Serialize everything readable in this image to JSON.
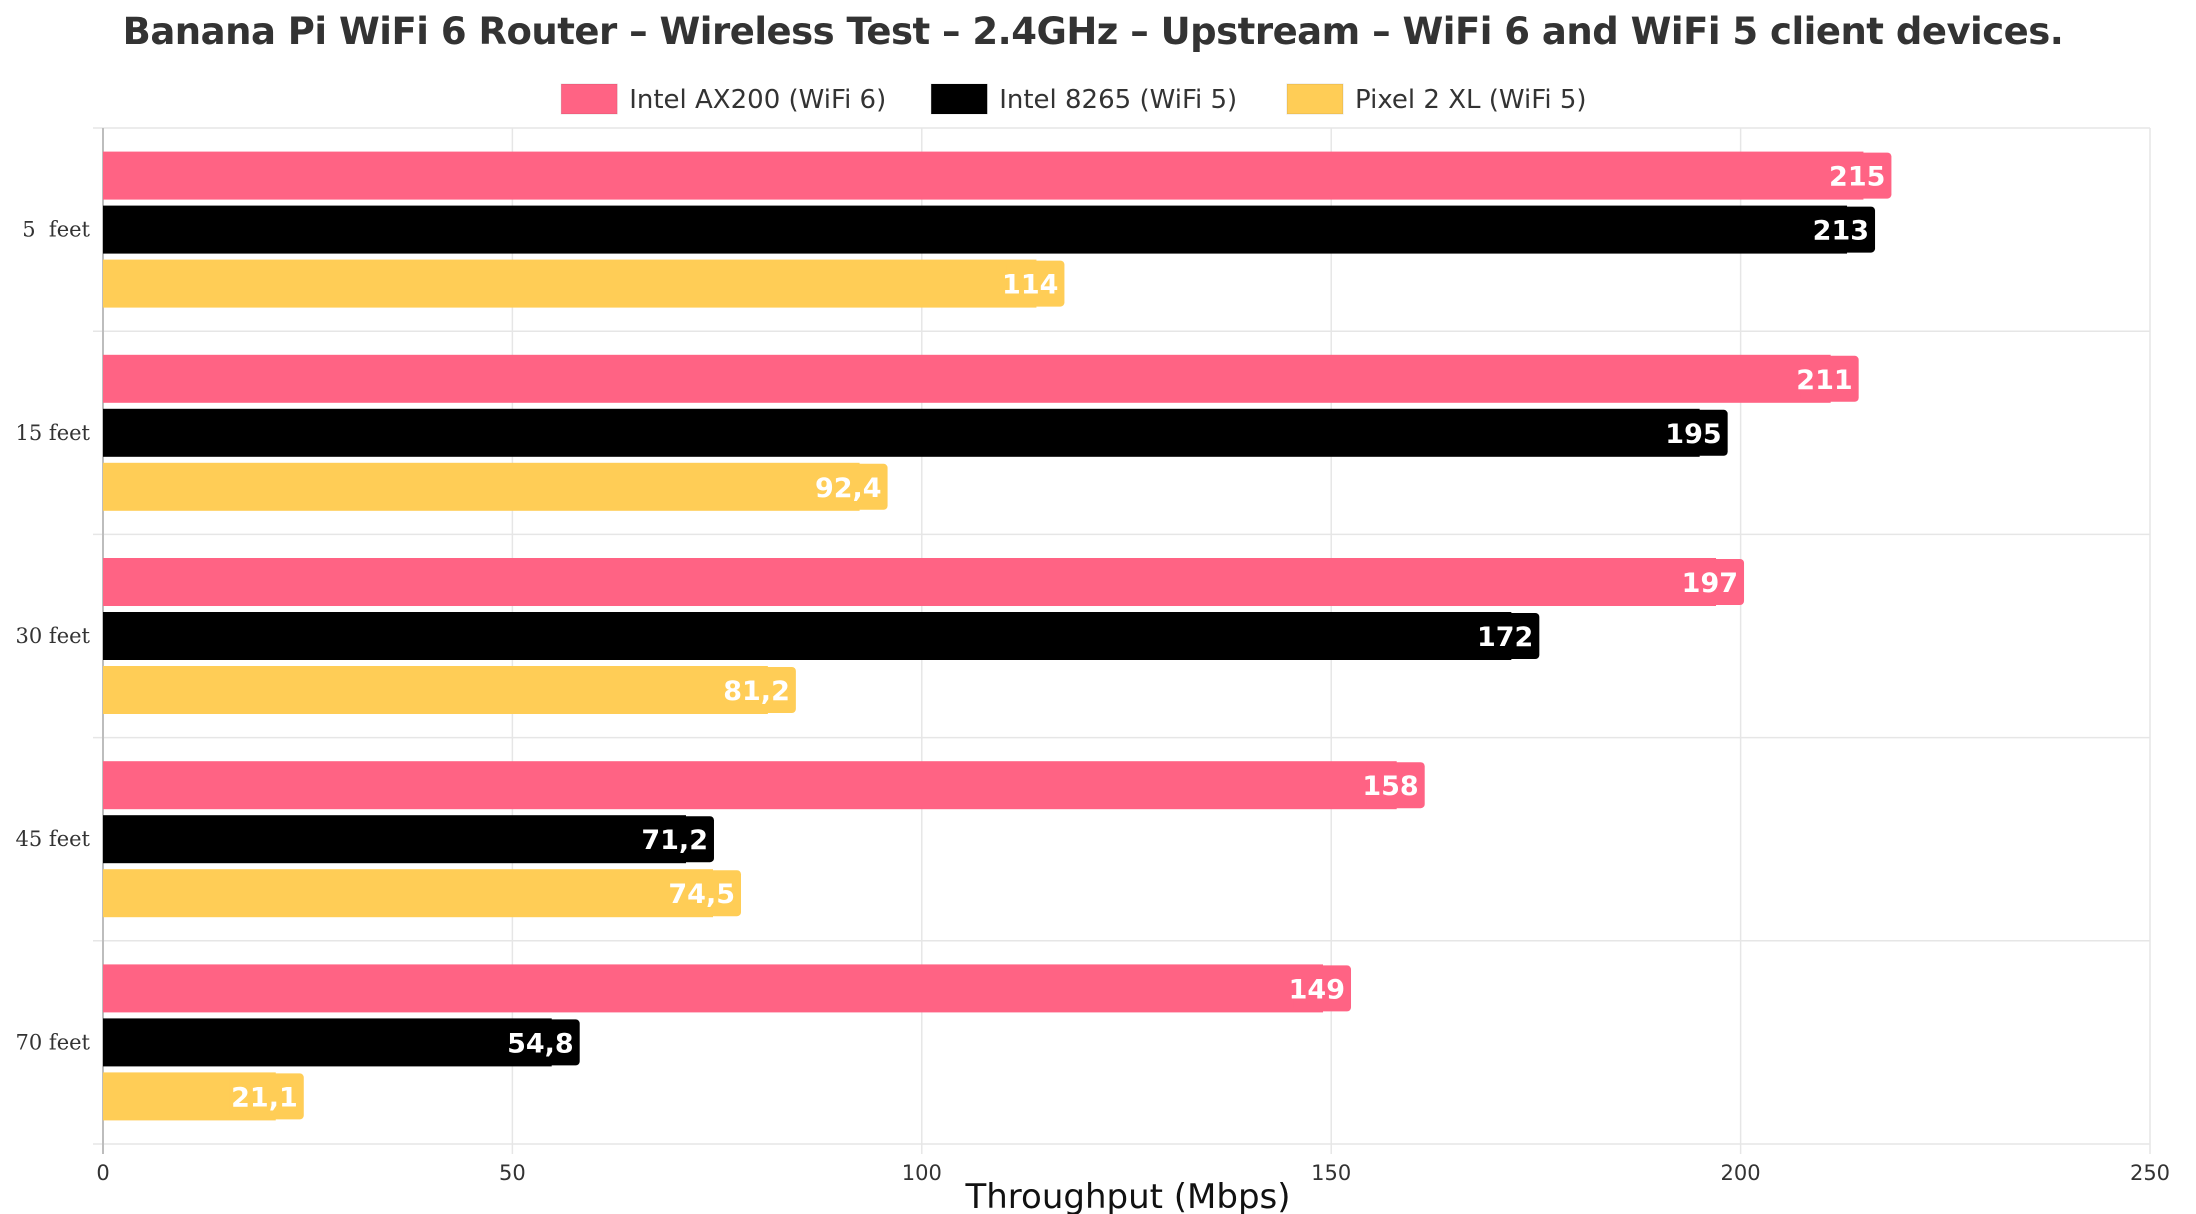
{
  "chart_data": {
    "type": "bar",
    "orientation": "horizontal",
    "title": "Banana Pi WiFi 6 Router – Wireless Test – 2.4GHz – Upstream – WiFi 6 and WiFi 5 client devices.",
    "xlabel": "Throughput (Mbps)",
    "ylabel": "",
    "categories": [
      "5  feet",
      "15 feet",
      "30 feet",
      "45 feet",
      "70 feet"
    ],
    "xlim": [
      0,
      250
    ],
    "xticks": [
      "0",
      "50",
      "100",
      "150",
      "200",
      "250"
    ],
    "grid": true,
    "legend_position": "top-center",
    "series": [
      {
        "name": "Intel AX200 (WiFi 6)",
        "color": "#ff6384",
        "values": [
          215,
          211,
          197,
          158,
          149
        ],
        "labels": [
          "215",
          "211",
          "197",
          "158",
          "149"
        ]
      },
      {
        "name": "Intel 8265 (WiFi 5)",
        "color": "#000000",
        "values": [
          213,
          195,
          172,
          71.2,
          54.8
        ],
        "labels": [
          "213",
          "195",
          "172",
          "71,2",
          "54,8"
        ]
      },
      {
        "name": "Pixel 2 XL (WiFi 5)",
        "color": "#ffcd56",
        "values": [
          114,
          92.4,
          81.2,
          74.5,
          21.1
        ],
        "labels": [
          "114",
          "92,4",
          "81,2",
          "74,5",
          "21,1"
        ]
      }
    ]
  }
}
